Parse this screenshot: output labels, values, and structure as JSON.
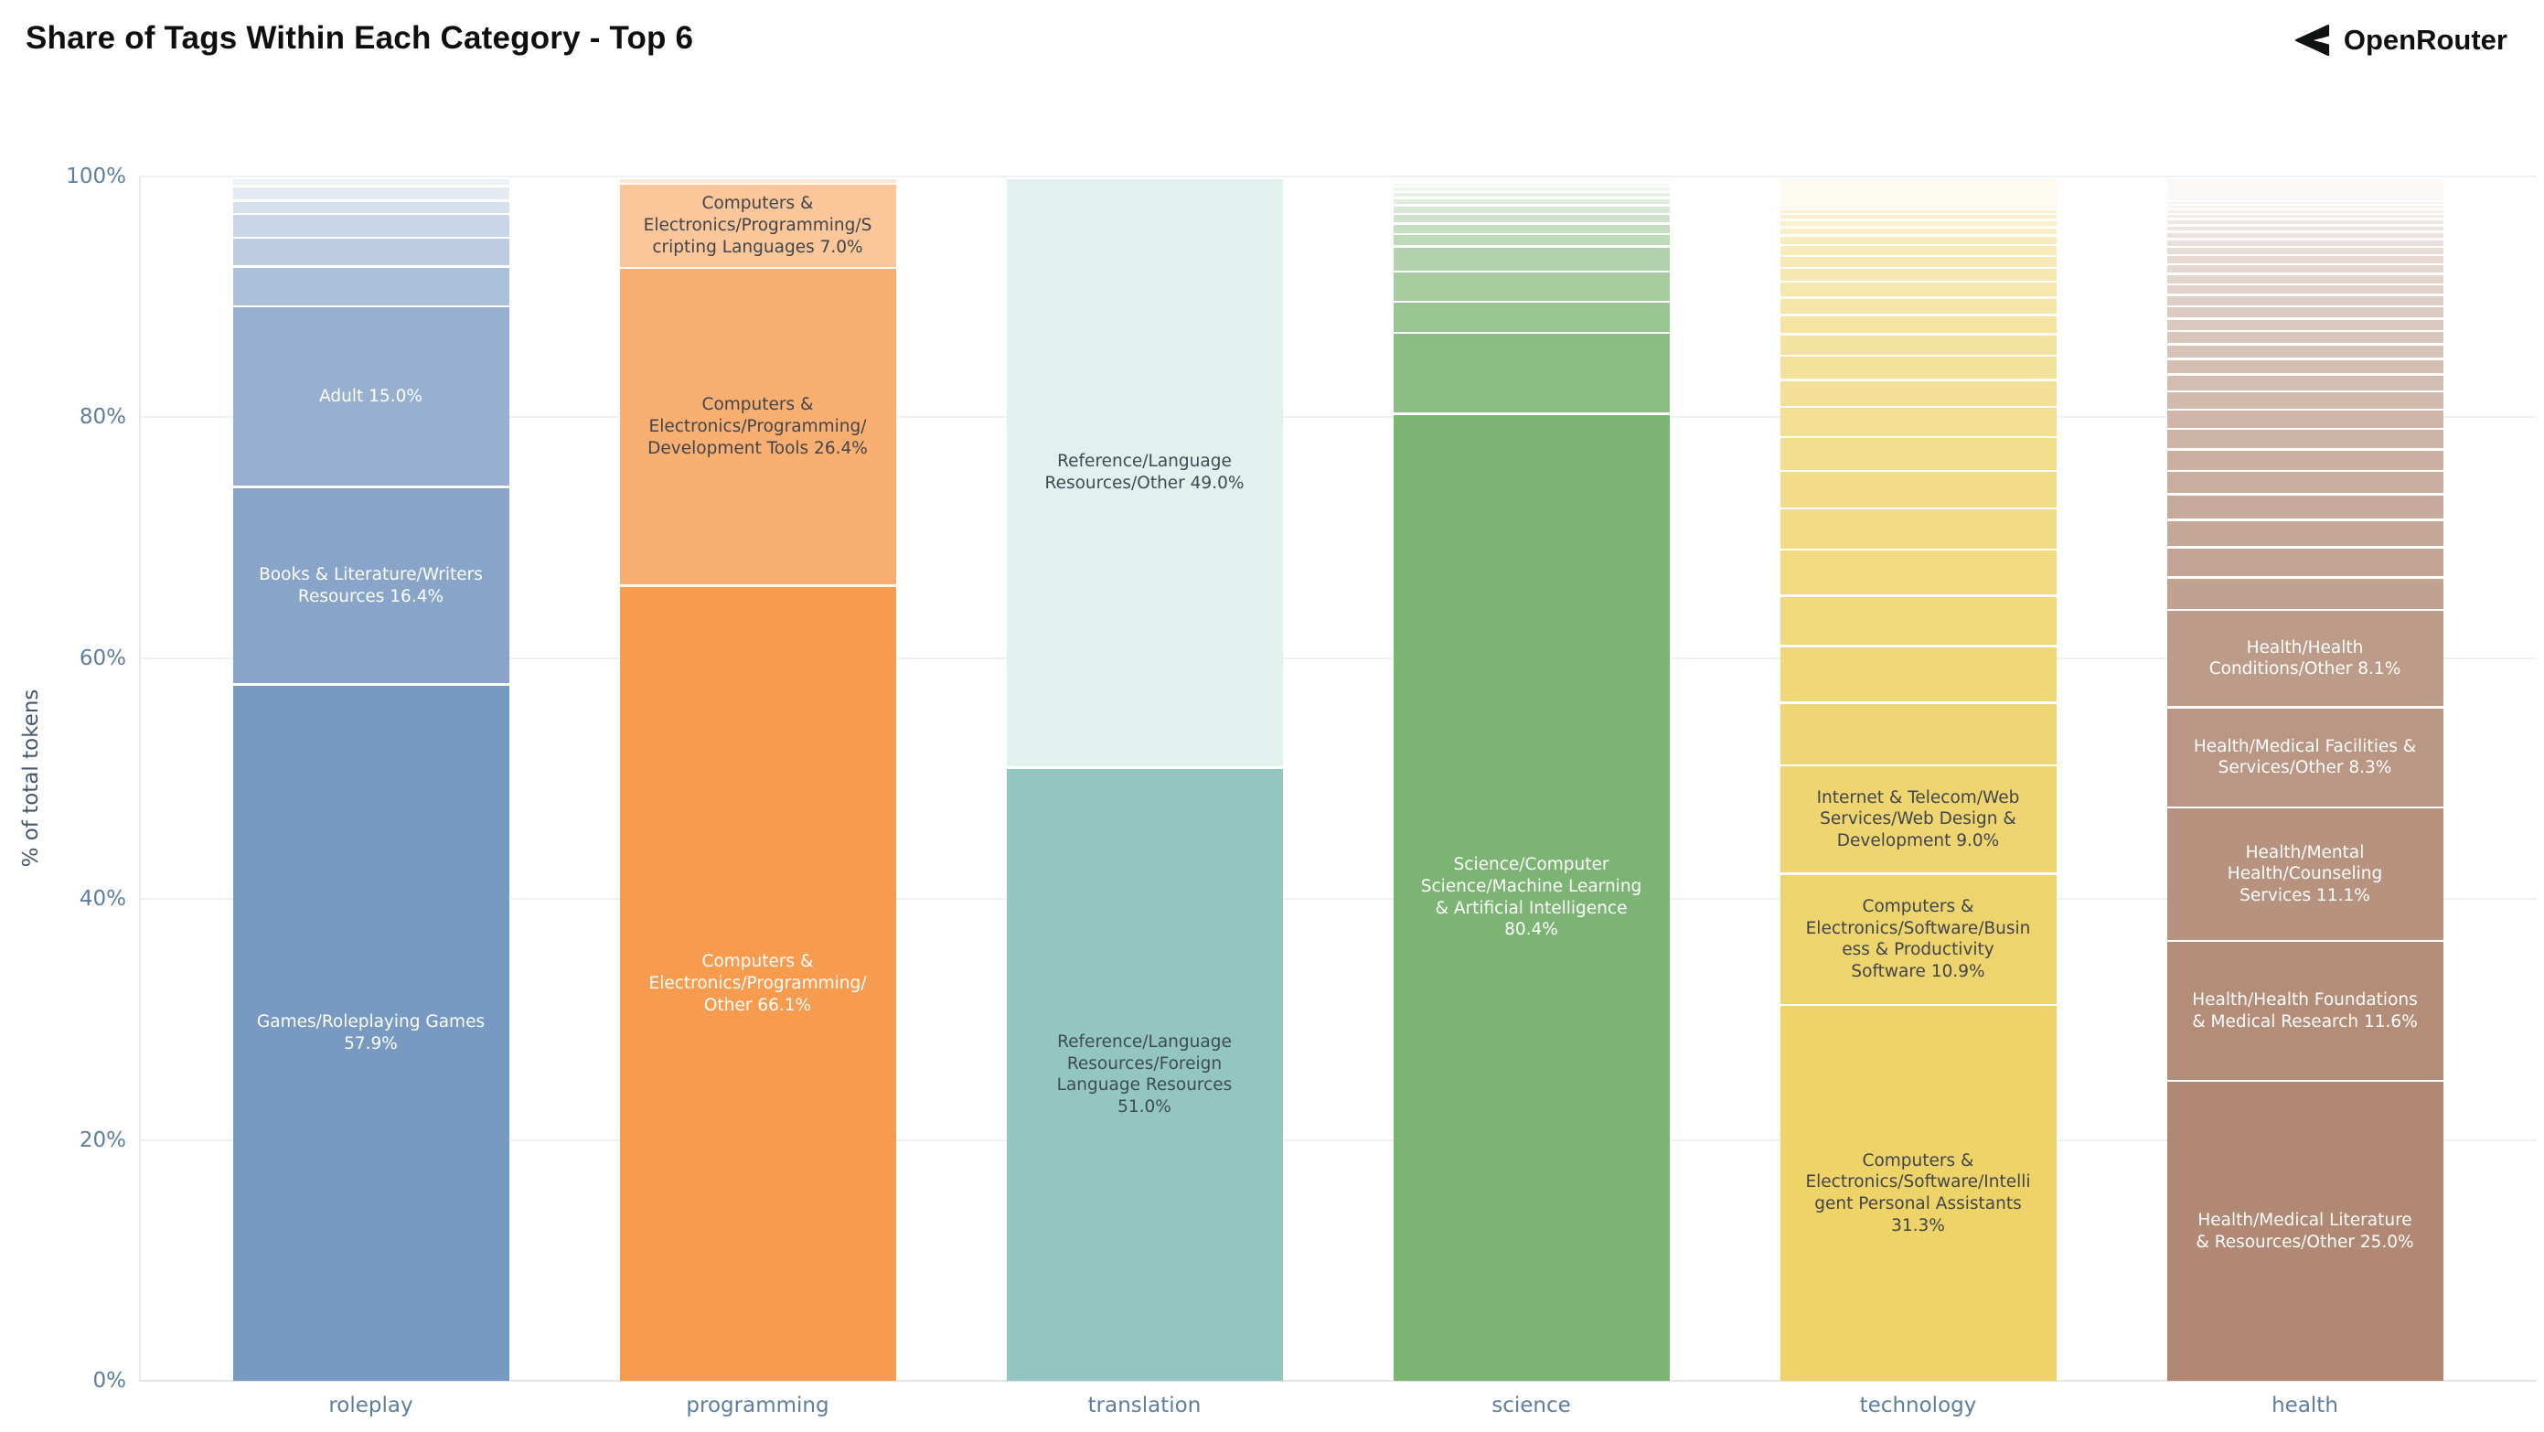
{
  "header": {
    "title": "Share of Tags Within Each Category - Top 6",
    "brand": "OpenRouter"
  },
  "colors": {
    "title_text": "#0d0f11",
    "tick_text": "#5d7e9e",
    "axis_title_text": "#47576a",
    "gridline": "#eef1f4",
    "baseline": "#e2e6ea",
    "spine": "#e9ecef",
    "label_dark": "#41454b",
    "label_light": "#ffffff"
  },
  "chart_data": {
    "type": "bar",
    "stacked": true,
    "normalized": true,
    "title": "Share of Tags Within Each Category - Top 6",
    "xlabel": "",
    "ylabel": "% of total tokens",
    "ylim": [
      0,
      100
    ],
    "grid": true,
    "legend": "none",
    "y_ticks": [
      "0%",
      "20%",
      "40%",
      "60%",
      "80%",
      "100%"
    ],
    "categories": [
      "roleplay",
      "programming",
      "translation",
      "science",
      "technology",
      "health"
    ],
    "bars": [
      {
        "category": "roleplay",
        "color": "#7899c2",
        "segments": [
          {
            "tag": "Games/Roleplaying Games",
            "share": 57.9,
            "alpha": 1.0,
            "text": "#ffffff"
          },
          {
            "tag": "Books & Literature/Writers Resources",
            "share": 16.4,
            "alpha": 0.88,
            "text": "#ffffff"
          },
          {
            "tag": "Adult",
            "share": 15.0,
            "alpha": 0.77,
            "text": "#ffffff"
          },
          {
            "share": 3.3,
            "alpha": 0.62
          },
          {
            "share": 2.4,
            "alpha": 0.5
          },
          {
            "share": 2.0,
            "alpha": 0.4
          },
          {
            "share": 1.1,
            "alpha": 0.3
          },
          {
            "share": 1.2,
            "alpha": 0.21
          },
          {
            "share": 0.7,
            "alpha": 0.13
          }
        ]
      },
      {
        "category": "programming",
        "color": "#f79b4e",
        "segments": [
          {
            "tag": "Computers & Electronics/Programming/Other",
            "share": 66.1,
            "alpha": 1.0,
            "text": "#ffffff"
          },
          {
            "tag": "Computers & Electronics/Programming/Development Tools",
            "share": 26.4,
            "alpha": 0.8,
            "text": "#41454b"
          },
          {
            "tag": "Computers & Electronics/Programming/Scripting Languages",
            "share": 7.0,
            "alpha": 0.57,
            "text": "#41454b"
          },
          {
            "share": 0.5,
            "alpha": 0.25
          }
        ]
      },
      {
        "category": "translation",
        "color": "#93c6c0",
        "segments": [
          {
            "tag": "Reference/Language Resources/Foreign Language Resources",
            "share": 51.0,
            "alpha": 1.0,
            "text": "#3f4a55"
          },
          {
            "tag": "Reference/Language Resources/Other",
            "share": 49.0,
            "alpha": 0.27,
            "text": "#3f4a55"
          }
        ]
      },
      {
        "category": "science",
        "color": "#7cb474",
        "segments": [
          {
            "tag": "Science/Computer Science/Machine Learning & Artificial Intelligence",
            "share": 80.4,
            "alpha": 1.0,
            "text": "#ffffff"
          },
          {
            "share": 6.7,
            "alpha": 0.88
          },
          {
            "share": 2.6,
            "alpha": 0.78
          },
          {
            "share": 2.5,
            "alpha": 0.68
          },
          {
            "share": 2.1,
            "alpha": 0.59
          },
          {
            "share": 1.0,
            "alpha": 0.51
          },
          {
            "share": 0.9,
            "alpha": 0.44
          },
          {
            "share": 0.8,
            "alpha": 0.37
          },
          {
            "share": 0.7,
            "alpha": 0.3
          },
          {
            "share": 0.6,
            "alpha": 0.24
          },
          {
            "share": 0.5,
            "alpha": 0.18
          },
          {
            "share": 0.45,
            "alpha": 0.13
          },
          {
            "share": 0.35,
            "alpha": 0.09
          },
          {
            "share": 0.4,
            "alpha": 0.05
          }
        ]
      },
      {
        "category": "technology",
        "color": "#eed369",
        "segments": [
          {
            "tag": "Computers & Electronics/Software/Intelligent Personal Assistants",
            "share": 31.3,
            "alpha": 1.0,
            "text": "#41454b"
          },
          {
            "tag": "Computers & Electronics/Software/Business & Productivity Software",
            "share": 10.9,
            "alpha": 0.98,
            "text": "#41454b"
          },
          {
            "tag": "Internet & Telecom/Web Services/Web Design & Development",
            "share": 9.0,
            "alpha": 0.96,
            "text": "#41454b"
          },
          {
            "share": 5.2,
            "alpha": 0.93
          },
          {
            "share": 4.7,
            "alpha": 0.9
          },
          {
            "share": 4.2,
            "alpha": 0.87
          },
          {
            "share": 3.8,
            "alpha": 0.84
          },
          {
            "share": 3.45,
            "alpha": 0.81
          },
          {
            "share": 3.1,
            "alpha": 0.79
          },
          {
            "share": 2.8,
            "alpha": 0.76
          },
          {
            "share": 2.5,
            "alpha": 0.73
          },
          {
            "share": 2.25,
            "alpha": 0.7
          },
          {
            "share": 2.0,
            "alpha": 0.67
          },
          {
            "share": 1.8,
            "alpha": 0.64
          },
          {
            "share": 1.6,
            "alpha": 0.61
          },
          {
            "share": 1.45,
            "alpha": 0.58
          },
          {
            "share": 1.3,
            "alpha": 0.55
          },
          {
            "share": 1.15,
            "alpha": 0.52
          },
          {
            "share": 1.0,
            "alpha": 0.49
          },
          {
            "share": 0.9,
            "alpha": 0.46
          },
          {
            "share": 0.8,
            "alpha": 0.43
          },
          {
            "share": 0.7,
            "alpha": 0.4
          },
          {
            "share": 0.6,
            "alpha": 0.37
          },
          {
            "share": 0.5,
            "alpha": 0.35
          },
          {
            "share": 0.4,
            "alpha": 0.33
          },
          {
            "share": 0.2,
            "alpha": 0.31
          },
          {
            "share": 2.4,
            "alpha": 0.1
          }
        ]
      },
      {
        "category": "health",
        "color": "#b18873",
        "segments": [
          {
            "tag": "Health/Medical Literature & Resources/Other",
            "share": 25.0,
            "alpha": 1.0,
            "text": "#ffffff"
          },
          {
            "tag": "Health/Health Foundations & Medical Research",
            "share": 11.6,
            "alpha": 0.96,
            "text": "#ffffff"
          },
          {
            "tag": "Health/Mental Health/Counseling Services",
            "share": 11.1,
            "alpha": 0.92,
            "text": "#ffffff"
          },
          {
            "tag": "Health/Medical Facilities & Services/Other",
            "share": 8.3,
            "alpha": 0.88,
            "text": "#ffffff"
          },
          {
            "tag": "Health/Health Conditions/Other",
            "share": 8.1,
            "alpha": 0.84,
            "text": "#ffffff"
          },
          {
            "share": 2.7,
            "alpha": 0.79
          },
          {
            "share": 2.5,
            "alpha": 0.765
          },
          {
            "share": 2.3,
            "alpha": 0.74
          },
          {
            "share": 2.1,
            "alpha": 0.715
          },
          {
            "share": 1.95,
            "alpha": 0.69
          },
          {
            "share": 1.8,
            "alpha": 0.665
          },
          {
            "share": 1.7,
            "alpha": 0.64
          },
          {
            "share": 1.6,
            "alpha": 0.615
          },
          {
            "share": 1.5,
            "alpha": 0.59
          },
          {
            "share": 1.4,
            "alpha": 0.565
          },
          {
            "share": 1.3,
            "alpha": 0.54
          },
          {
            "share": 1.2,
            "alpha": 0.515
          },
          {
            "share": 1.1,
            "alpha": 0.49
          },
          {
            "share": 1.05,
            "alpha": 0.465
          },
          {
            "share": 1.0,
            "alpha": 0.44
          },
          {
            "share": 0.95,
            "alpha": 0.415
          },
          {
            "share": 0.9,
            "alpha": 0.39
          },
          {
            "share": 0.85,
            "alpha": 0.365
          },
          {
            "share": 0.8,
            "alpha": 0.34
          },
          {
            "share": 0.75,
            "alpha": 0.315
          },
          {
            "share": 0.7,
            "alpha": 0.29
          },
          {
            "share": 0.65,
            "alpha": 0.265
          },
          {
            "share": 0.6,
            "alpha": 0.24
          },
          {
            "share": 0.55,
            "alpha": 0.215
          },
          {
            "share": 0.5,
            "alpha": 0.19
          },
          {
            "share": 0.45,
            "alpha": 0.165
          },
          {
            "share": 0.4,
            "alpha": 0.14
          },
          {
            "share": 0.35,
            "alpha": 0.115
          },
          {
            "share": 0.3,
            "alpha": 0.09
          },
          {
            "share": 1.95,
            "alpha": 0.06
          }
        ]
      }
    ]
  }
}
